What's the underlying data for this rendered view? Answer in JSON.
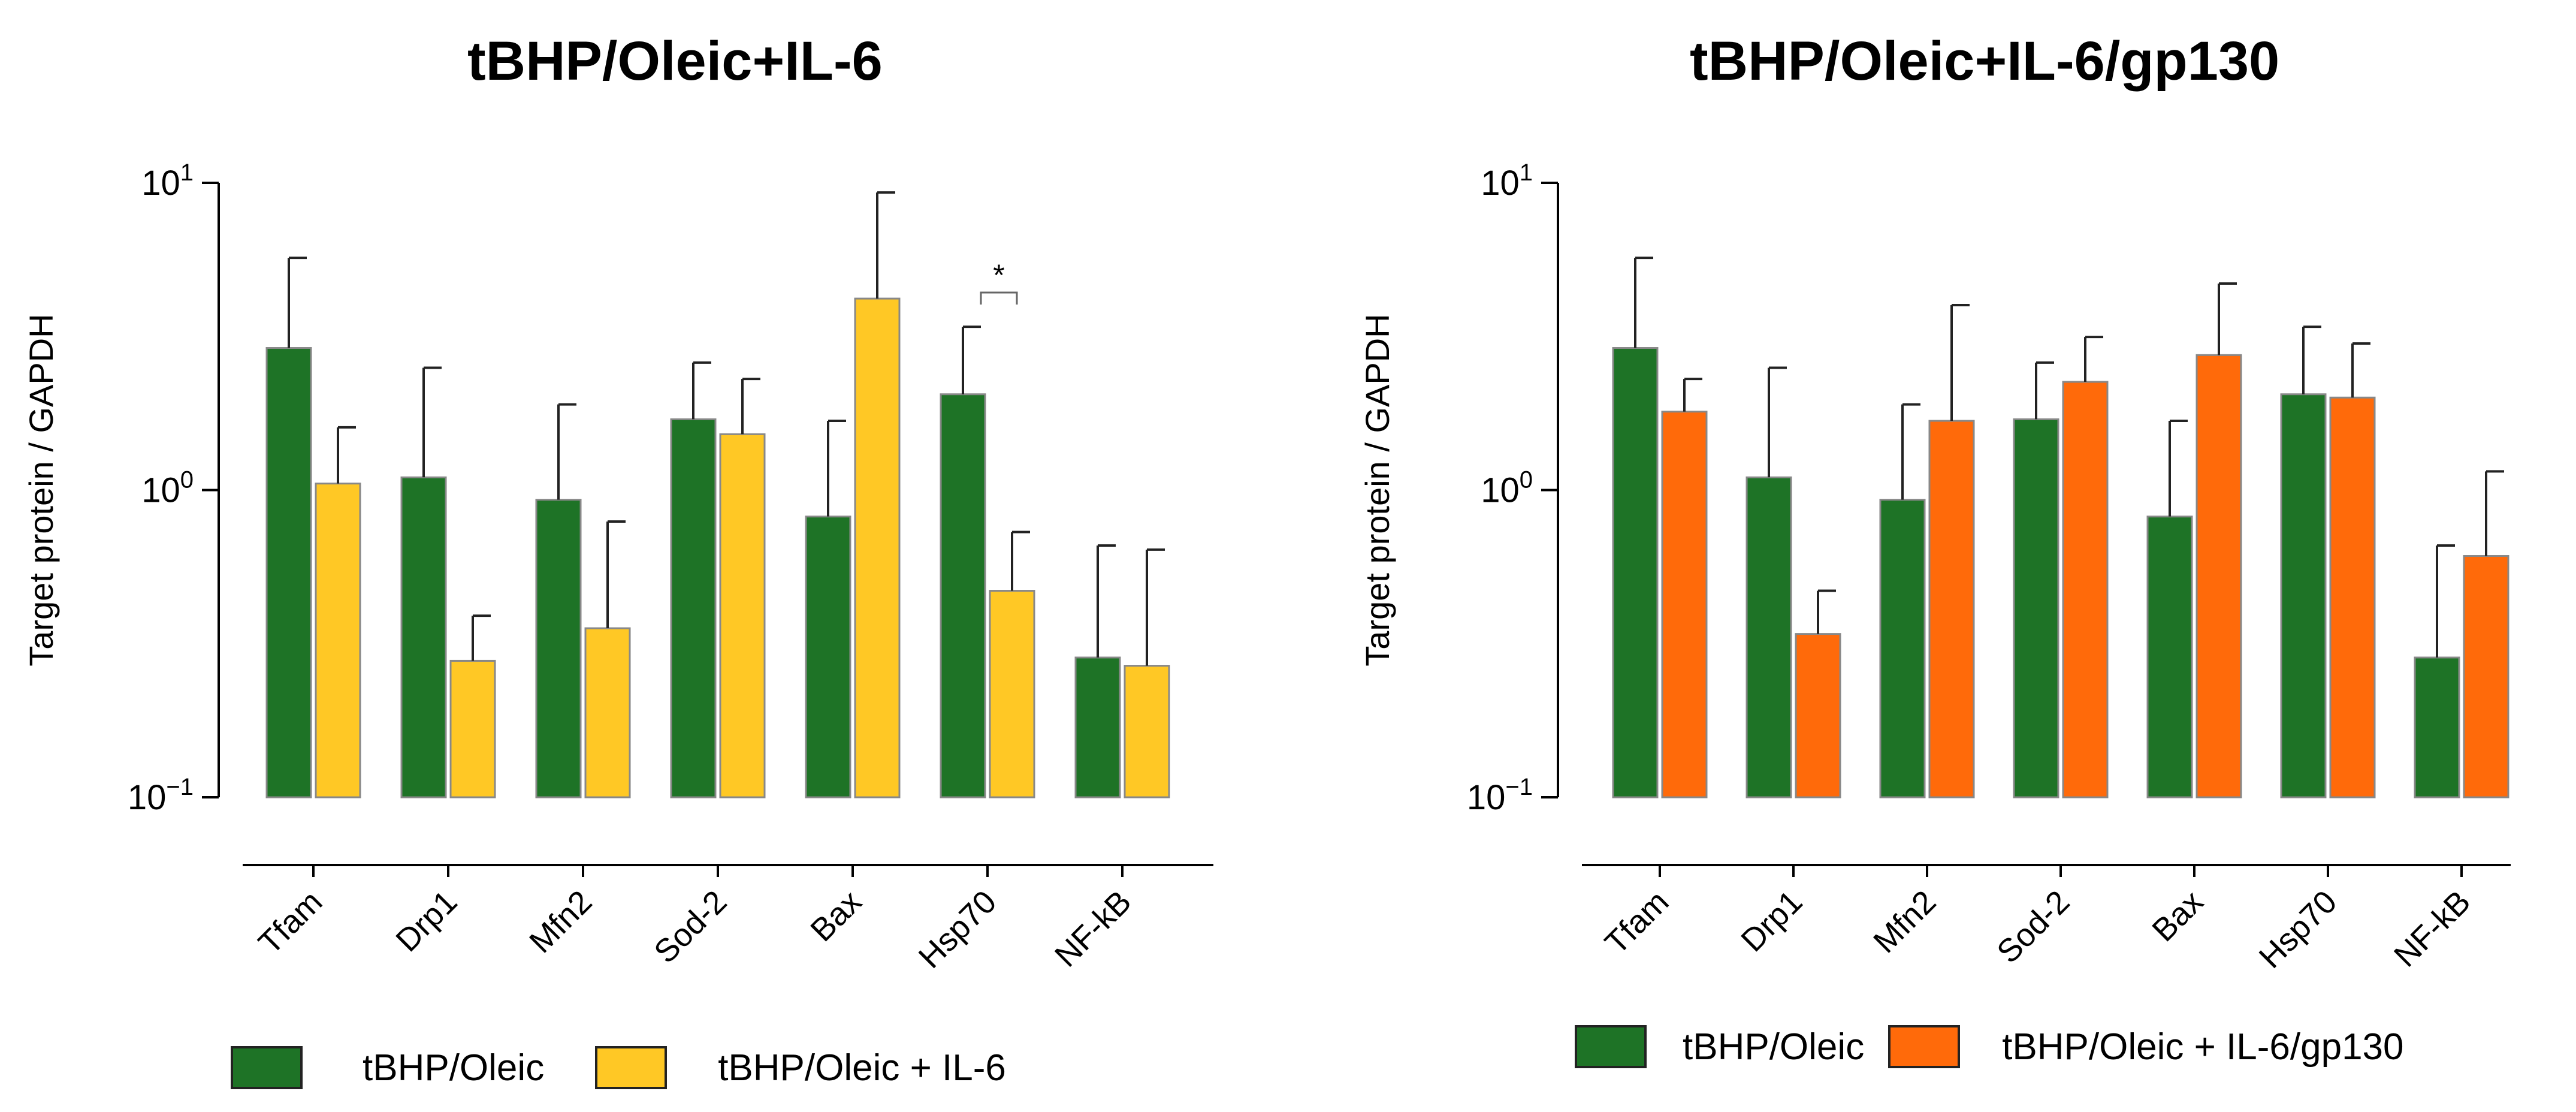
{
  "chart_data": [
    {
      "type": "bar",
      "title": "tBHP/Oleic+IL-6",
      "ylabel": "Target protein / GAPDH",
      "yscale": "log",
      "ylim": [
        0.1,
        10
      ],
      "yticks": [
        {
          "value": 0.1,
          "base": "10",
          "exp": "−1"
        },
        {
          "value": 1,
          "base": "10",
          "exp": "0"
        },
        {
          "value": 10,
          "base": "10",
          "exp": "1"
        }
      ],
      "categories": [
        "Tfam",
        "Drp1",
        "Mfn2",
        "Sod-2",
        "Bax",
        "Hsp70",
        "NF-kB"
      ],
      "series": [
        {
          "name": "tBHP/Oleic",
          "color": "#1e7326",
          "values": [
            2.9,
            1.1,
            0.93,
            1.7,
            0.82,
            2.05,
            0.285
          ],
          "err_upper": [
            5.7,
            2.5,
            1.9,
            2.6,
            1.68,
            3.4,
            0.66
          ]
        },
        {
          "name": "tBHP/Oleic + IL-6",
          "color": "#ffc825",
          "values": [
            1.05,
            0.278,
            0.355,
            1.52,
            4.2,
            0.47,
            0.268
          ],
          "err_upper": [
            1.6,
            0.39,
            0.79,
            2.3,
            9.3,
            0.73,
            0.64
          ]
        }
      ],
      "annotations": [
        {
          "text": "*",
          "between": "Hsp70",
          "type": "significance"
        }
      ],
      "legend": [
        "tBHP/Oleic",
        "tBHP/Oleic + IL-6"
      ]
    },
    {
      "type": "bar",
      "title": "tBHP/Oleic+IL-6/gp130",
      "ylabel": "Target protein / GAPDH",
      "yscale": "log",
      "ylim": [
        0.1,
        10
      ],
      "yticks": [
        {
          "value": 0.1,
          "base": "10",
          "exp": "−1"
        },
        {
          "value": 1,
          "base": "10",
          "exp": "0"
        },
        {
          "value": 10,
          "base": "10",
          "exp": "1"
        }
      ],
      "categories": [
        "Tfam",
        "Drp1",
        "Mfn2",
        "Sod-2",
        "Bax",
        "Hsp70",
        "NF-kB"
      ],
      "series": [
        {
          "name": "tBHP/Oleic",
          "color": "#1e7326",
          "values": [
            2.9,
            1.1,
            0.93,
            1.7,
            0.82,
            2.05,
            0.285
          ],
          "err_upper": [
            5.7,
            2.5,
            1.9,
            2.6,
            1.68,
            3.4,
            0.66
          ]
        },
        {
          "name": "tBHP/Oleic + IL-6/gp130",
          "color": "#ff6a0a",
          "values": [
            1.8,
            0.34,
            1.68,
            2.25,
            2.75,
            2.0,
            0.61
          ],
          "err_upper": [
            2.3,
            0.47,
            4.0,
            3.15,
            4.7,
            3.0,
            1.15
          ]
        }
      ],
      "legend": [
        "tBHP/Oleic",
        "tBHP/Oleic + IL-6/gp130"
      ]
    }
  ]
}
